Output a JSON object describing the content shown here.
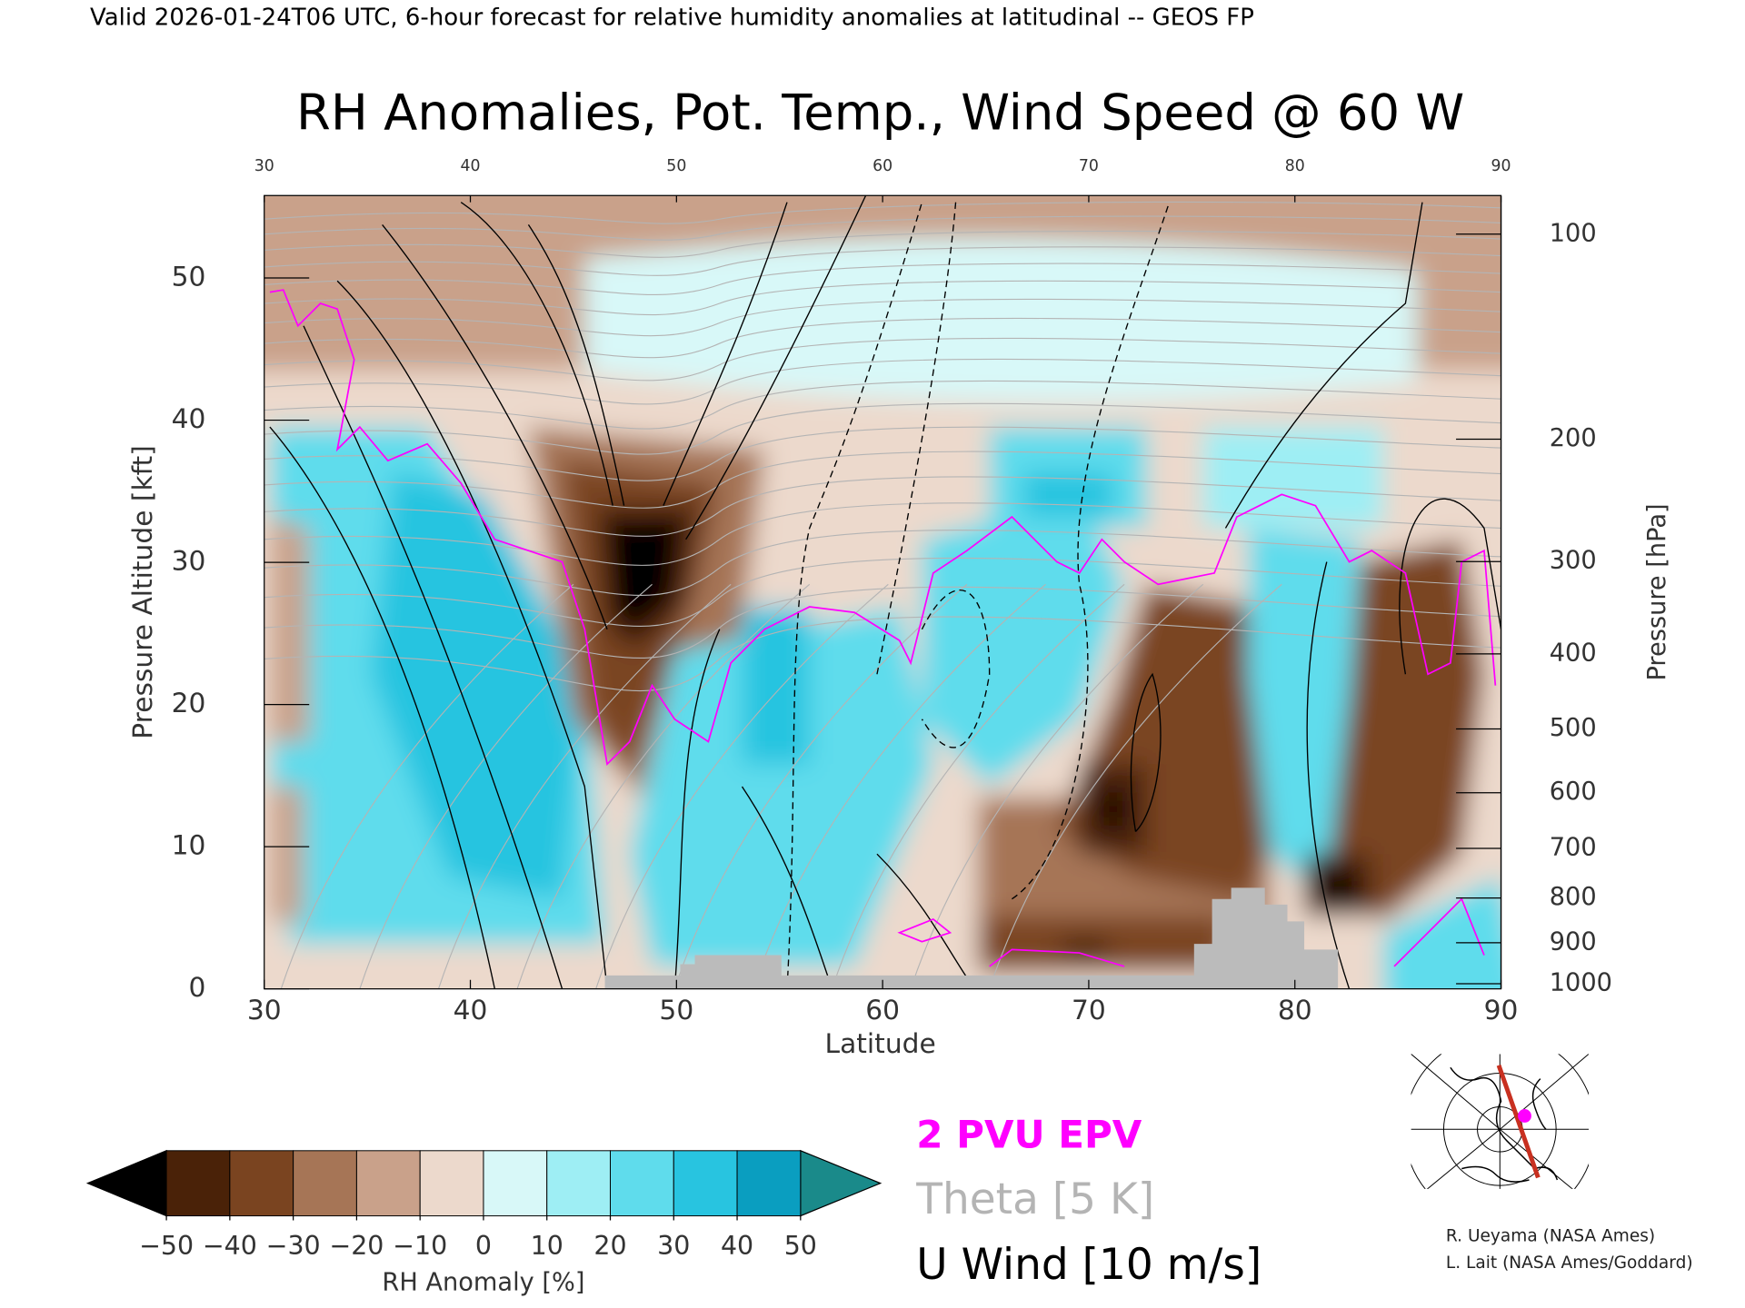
{
  "chart_data": {
    "type": "cross-section",
    "header": "Valid 2026-01-24T06 UTC, 6-hour forecast for relative humidity anomalies at latitudinal -- GEOS FP",
    "title": "RH Anomalies, Pot. Temp., Wind Speed @ 60 W",
    "xlabel": "Latitude",
    "ylabel": "Pressure Altitude [kft]",
    "y2label": "Pressure [hPa]",
    "xlim": [
      30,
      90
    ],
    "xticks": [
      30,
      40,
      50,
      60,
      70,
      80,
      90
    ],
    "ylim": [
      0,
      55.8
    ],
    "yticks": [
      0,
      10,
      20,
      30,
      40,
      50
    ],
    "y2lim": [
      1013,
      88
    ],
    "y2ticks": [
      100,
      200,
      300,
      400,
      500,
      600,
      700,
      800,
      900,
      1000
    ],
    "colorbar": {
      "label": "RH Anomaly [%]",
      "ticks": [
        {
          "value": -50,
          "label": "−50"
        },
        {
          "value": -40,
          "label": "−40"
        },
        {
          "value": -30,
          "label": "−30"
        },
        {
          "value": -20,
          "label": "−20"
        },
        {
          "value": -10,
          "label": "−10"
        },
        0,
        10,
        20,
        30,
        40,
        50
      ],
      "colors": [
        "#4a2208",
        "#7a4420",
        "#a67556",
        "#c9a18a",
        "#ecd9cc",
        "#d8f8f8",
        "#9eeef4",
        "#5fdcec",
        "#28c4e0",
        "#0a9ec0"
      ],
      "under": "#000000",
      "over": "#1a8a8a"
    },
    "legend": [
      {
        "label": "2 PVU EPV",
        "color": "#ff00ff"
      },
      {
        "label": "Theta [5 K]",
        "color": "#b4b4b4"
      },
      {
        "label": "U Wind [10 m/s]",
        "color": "#000000"
      }
    ],
    "credits": [
      "R. Ueyama (NASA Ames)",
      "L. Lait (NASA Ames/Goddard)"
    ]
  }
}
